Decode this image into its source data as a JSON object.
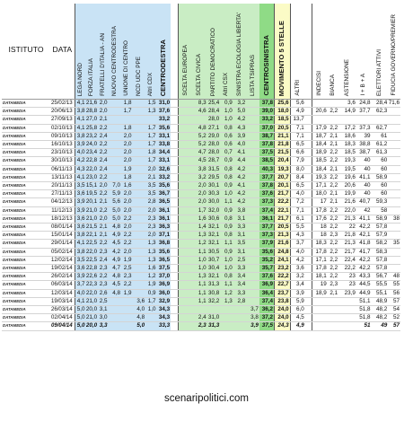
{
  "chart_data": {
    "type": "table",
    "columns": [
      {
        "key": "istituto",
        "label": "ISTITUTO"
      },
      {
        "key": "data",
        "label": "DATA"
      },
      {
        "key": "lega",
        "label": "LEGA NORD"
      },
      {
        "key": "fi",
        "label": "FORZA ITALIA"
      },
      {
        "key": "fdi",
        "label": "FRATELLI D'ITALIA - AN"
      },
      {
        "key": "ncd",
        "label": "NUOVO CENTRODESTRA"
      },
      {
        "key": "udc",
        "label": "UNIONE DI CENTRO"
      },
      {
        "key": "ncd_udc_ppe",
        "label": "NCD UDC PPE"
      },
      {
        "key": "altri_cdx",
        "label": "Altri CDX"
      },
      {
        "key": "centrodestra",
        "label": "CENTRODESTRA"
      },
      {
        "key": "se",
        "label": "SCELTA EUROPEA"
      },
      {
        "key": "sc",
        "label": "SCELTA CIVICA"
      },
      {
        "key": "pd",
        "label": "PARTITO DEMOCRATICO"
      },
      {
        "key": "altri_csx",
        "label": "Altri CSX"
      },
      {
        "key": "sel",
        "label": "SINISTRA ECOLOGIA LIBERTA'"
      },
      {
        "key": "tsipras",
        "label": "LISTA TSIPRAS"
      },
      {
        "key": "centrosinistra",
        "label": "CENTROSINISTRA"
      },
      {
        "key": "m5s",
        "label": "MOVIMENTO 5 STELLE"
      },
      {
        "key": "altri",
        "label": "ALTRI"
      },
      {
        "key": "indecisi",
        "label": "INDECISI"
      },
      {
        "key": "bianca",
        "label": "BIANCA"
      },
      {
        "key": "astensione",
        "label": "ASTENSIONE"
      },
      {
        "key": "ib_a",
        "label": "I + B + A"
      },
      {
        "key": "elettori",
        "label": "ELETTORI ATTIVI"
      },
      {
        "key": "fiducia",
        "label": "FIDUCIA GOVERNO/PREMIER"
      }
    ],
    "rows": [
      [
        "DATAMEDIA",
        "25/02/13",
        "4,1",
        "21,6",
        "2,0",
        "",
        "1,8",
        "",
        "1,5",
        "31,0",
        "",
        "8,3",
        "25,4",
        "0,9",
        "3,2",
        "",
        "37,8",
        "25,6",
        "5,6",
        "",
        "",
        "3,6",
        "24,8",
        "28,4",
        "71,6",
        ""
      ],
      [
        "DATAMEDIA",
        "20/06/13",
        "3,8",
        "28,8",
        "2,0",
        "",
        "1,7",
        "",
        "1,3",
        "37,6",
        "",
        "4,6",
        "28,4",
        "1,0",
        "5,0",
        "",
        "39,0",
        "18,0",
        "4,9",
        "20,6",
        "2,2",
        "14,9",
        "37,7",
        "62,3",
        ""
      ],
      [
        "DATAMEDIA",
        "27/09/13",
        "4,1",
        "27,0",
        "2,1",
        "",
        "",
        "",
        "",
        "33,2",
        "",
        "",
        "28,0",
        "1,0",
        "4,2",
        "",
        "33,2",
        "18,5",
        "13,7",
        "",
        "",
        "",
        "",
        "",
        ""
      ],
      [
        "DATAMEDIA",
        "02/10/13",
        "4,1",
        "25,8",
        "2,2",
        "",
        "1,8",
        "",
        "1,7",
        "35,6",
        "",
        "4,8",
        "27,1",
        "0,8",
        "4,3",
        "",
        "37,0",
        "20,5",
        "7,1",
        "17,9",
        "2,2",
        "17,2",
        "37,3",
        "62,7",
        ""
      ],
      [
        "DATAMEDIA",
        "09/10/13",
        "3,8",
        "23,2",
        "2,4",
        "",
        "2,0",
        "",
        "1,7",
        "33,1",
        "",
        "5,2",
        "29,0",
        "0,6",
        "3,9",
        "",
        "38,7",
        "21,1",
        "7,1",
        "18,7",
        "2,1",
        "18,6",
        "39",
        "61",
        ""
      ],
      [
        "DATAMEDIA",
        "16/10/13",
        "3,9",
        "24,0",
        "2,2",
        "",
        "2,0",
        "",
        "1,7",
        "33,8",
        "",
        "5,2",
        "28,0",
        "0,6",
        "4,0",
        "",
        "37,8",
        "21,8",
        "6,5",
        "18,4",
        "2,1",
        "18,3",
        "38,8",
        "61,2",
        ""
      ],
      [
        "DATAMEDIA",
        "23/10/13",
        "4,0",
        "23,4",
        "2,2",
        "",
        "2,0",
        "",
        "1,8",
        "34,4",
        "",
        "4,7",
        "28,0",
        "0,7",
        "4,1",
        "",
        "37,5",
        "21,5",
        "6,6",
        "18,9",
        "2,2",
        "18,5",
        "38,7",
        "61,3",
        ""
      ],
      [
        "DATAMEDIA",
        "30/10/13",
        "4,2",
        "22,8",
        "2,4",
        "",
        "2,0",
        "",
        "1,7",
        "33,1",
        "",
        "4,5",
        "28,7",
        "0,9",
        "4,4",
        "",
        "38,5",
        "20,4",
        "7,9",
        "18,5",
        "2,2",
        "19,3",
        "40",
        "60",
        ""
      ],
      [
        "DATAMEDIA",
        "06/11/13",
        "4,3",
        "22,0",
        "2,4",
        "",
        "1,9",
        "",
        "2,0",
        "32,6",
        "",
        "3,8",
        "31,5",
        "0,8",
        "4,2",
        "",
        "40,3",
        "19,3",
        "8,0",
        "18,4",
        "2,1",
        "19,5",
        "40",
        "60",
        ""
      ],
      [
        "DATAMEDIA",
        "13/11/13",
        "4,1",
        "23,0",
        "2,2",
        "",
        "1,8",
        "",
        "2,1",
        "33,2",
        "",
        "3,2",
        "29,5",
        "0,8",
        "4,2",
        "",
        "37,7",
        "20,7",
        "8,4",
        "19,3",
        "2,2",
        "19,6",
        "41,1",
        "58,9",
        ""
      ],
      [
        "DATAMEDIA",
        "20/11/13",
        "3,5",
        "15,1",
        "2,0",
        "7,0",
        "1,6",
        "",
        "3,5",
        "35,6",
        "",
        "2,0",
        "30,1",
        "0,9",
        "4,1",
        "",
        "37,8",
        "20,1",
        "6,5",
        "17,1",
        "2,2",
        "20,6",
        "40",
        "60",
        ""
      ],
      [
        "DATAMEDIA",
        "27/11/13",
        "3,6",
        "19,5",
        "2,2",
        "5,9",
        "2,0",
        "",
        "3,5",
        "36,7",
        "",
        "2,0",
        "30,3",
        "1,0",
        "4,2",
        "",
        "37,6",
        "21,7",
        "4,0",
        "18,0",
        "2,1",
        "19,9",
        "40",
        "60",
        ""
      ],
      [
        "DATAMEDIA",
        "04/12/13",
        "3,9",
        "20,1",
        "2,1",
        "5,6",
        "2,0",
        "",
        "2,8",
        "36,5",
        "",
        "2,0",
        "30,0",
        "1,1",
        "4,2",
        "",
        "37,3",
        "22,2",
        "7,2",
        "17",
        "2,1",
        "21,6",
        "40,7",
        "59,3",
        ""
      ],
      [
        "DATAMEDIA",
        "11/12/13",
        "3,9",
        "21,0",
        "2,2",
        "5,0",
        "2,0",
        "",
        "2,0",
        "36,1",
        "",
        "1,7",
        "32,0",
        "0,9",
        "3,8",
        "",
        "37,4",
        "22,1",
        "7,1",
        "17,8",
        "2,2",
        "22,0",
        "42",
        "58",
        ""
      ],
      [
        "DATAMEDIA",
        "18/12/13",
        "3,6",
        "21,0",
        "2,0",
        "5,0",
        "2,2",
        "",
        "2,3",
        "36,1",
        "",
        "1,6",
        "30,6",
        "0,8",
        "3,1",
        "",
        "36,1",
        "21,7",
        "6,1",
        "17,6",
        "2,2",
        "21,3",
        "41,1",
        "58,9",
        "38"
      ],
      [
        "DATAMEDIA",
        "08/01/14",
        "3,6",
        "21,5",
        "2,1",
        "4,8",
        "2,0",
        "",
        "2,3",
        "36,3",
        "",
        "1,4",
        "32,1",
        "0,9",
        "3,3",
        "",
        "37,7",
        "20,5",
        "5,5",
        "18",
        "2,2",
        "22",
        "42,2",
        "57,8",
        ""
      ],
      [
        "DATAMEDIA",
        "15/01/14",
        "3,8",
        "22,1",
        "2,1",
        "4,9",
        "2,2",
        "",
        "2,0",
        "37,1",
        "",
        "1,3",
        "32,1",
        "0,8",
        "3,1",
        "",
        "37,3",
        "21,3",
        "4,3",
        "18",
        "2,3",
        "21,8",
        "42,1",
        "57,9",
        ""
      ],
      [
        "DATAMEDIA",
        "29/01/14",
        "4,1",
        "22,5",
        "2,2",
        "4,5",
        "2,2",
        "",
        "1,3",
        "36,8",
        "",
        "1,2",
        "32,1",
        "1,1",
        "3,5",
        "",
        "37,9",
        "21,6",
        "3,7",
        "18,3",
        "2,2",
        "21,3",
        "41,8",
        "58,2",
        "35"
      ],
      [
        "DATAMEDIA",
        "05/02/14",
        "3,8",
        "22,0",
        "2,3",
        "4,2",
        "2,0",
        "",
        "1,3",
        "35,6",
        "",
        "1,1",
        "30,5",
        "0,9",
        "3,1",
        "",
        "35,6",
        "24,8",
        "4,0",
        "17,8",
        "2,2",
        "21,7",
        "41,7",
        "58,3",
        ""
      ],
      [
        "DATAMEDIA",
        "12/02/14",
        "3,5",
        "22,5",
        "2,4",
        "4,9",
        "1,9",
        "",
        "1,3",
        "36,5",
        "",
        "1,0",
        "30,7",
        "1,0",
        "2,5",
        "",
        "35,2",
        "24,1",
        "4,2",
        "17,1",
        "2,2",
        "22,4",
        "42,2",
        "57,8",
        ""
      ],
      [
        "DATAMEDIA",
        "19/02/14",
        "3,6",
        "22,8",
        "2,3",
        "4,7",
        "2,5",
        "",
        "1,6",
        "37,5",
        "",
        "1,0",
        "30,4",
        "1,0",
        "3,3",
        "",
        "35,7",
        "23,2",
        "3,6",
        "17,8",
        "2,2",
        "22,2",
        "42,2",
        "57,8",
        ""
      ],
      [
        "DATAMEDIA",
        "26/02/14",
        "3,9",
        "22,6",
        "2,2",
        "4,8",
        "2,3",
        "",
        "1,2",
        "37,0",
        "",
        "1,3",
        "32,1",
        "0,8",
        "3,4",
        "",
        "37,6",
        "22,2",
        "3,2",
        "18,1",
        "2,2",
        "23",
        "43,3",
        "56,7",
        "48"
      ],
      [
        "DATAMEDIA",
        "06/03/14",
        "3,7",
        "22,3",
        "2,3",
        "4,5",
        "2,2",
        "",
        "1,9",
        "36,9",
        "",
        "1,1",
        "31,3",
        "1,1",
        "3,4",
        "",
        "36,9",
        "22,7",
        "3,4",
        "19",
        "2,3",
        "23",
        "44,5",
        "55,5",
        "55"
      ],
      [
        "DATAMEDIA",
        "12/03/14",
        "4,0",
        "22,0",
        "2,6",
        "4,8",
        "1,9",
        "",
        "0,9",
        "36,0",
        "",
        "1,1",
        "30,8",
        "1,2",
        "3,3",
        "",
        "36,4",
        "23,7",
        "3,9",
        "18,9",
        "2,1",
        "23,9",
        "44,9",
        "55,1",
        "56"
      ],
      [
        "DATAMEDIA",
        "19/03/14",
        "4,1",
        "21,0",
        "2,5",
        "",
        "",
        "3,6",
        "1,7",
        "32,9",
        "",
        "1,1",
        "32,2",
        "1,3",
        "2,8",
        "",
        "37,4",
        "23,8",
        "5,9",
        "",
        "",
        "",
        "51,1",
        "48,9",
        "57"
      ],
      [
        "DATAMEDIA",
        "26/03/14",
        "5,0",
        "20,0",
        "3,1",
        "",
        "",
        "4,0",
        "1,0",
        "34,3",
        "",
        "",
        "",
        "",
        "",
        "3,7",
        "36,2",
        "24,0",
        "6,0",
        "",
        "",
        "",
        "51,8",
        "48,2",
        "54"
      ],
      [
        "DATAMEDIA",
        "02/04/14",
        "5,0",
        "21,0",
        "3,0",
        "",
        "",
        "4,8",
        "",
        "34,3",
        "",
        "2,4",
        "31,0",
        "",
        "",
        "3,8",
        "37,2",
        "24,0",
        "4,5",
        "",
        "",
        "",
        "51,8",
        "48,2",
        "52"
      ],
      [
        "DATAMEDIA",
        "09/04/14",
        "5,0",
        "20,0",
        "3,3",
        "",
        "",
        "5,0",
        "",
        "33,3",
        "",
        "2,3",
        "31,3",
        "",
        "",
        "3,9",
        "37,5",
        "24,3",
        "4,9",
        "",
        "",
        "",
        "51",
        "49",
        "57"
      ]
    ]
  },
  "footer": {
    "source": "scenaripolitici.com"
  }
}
